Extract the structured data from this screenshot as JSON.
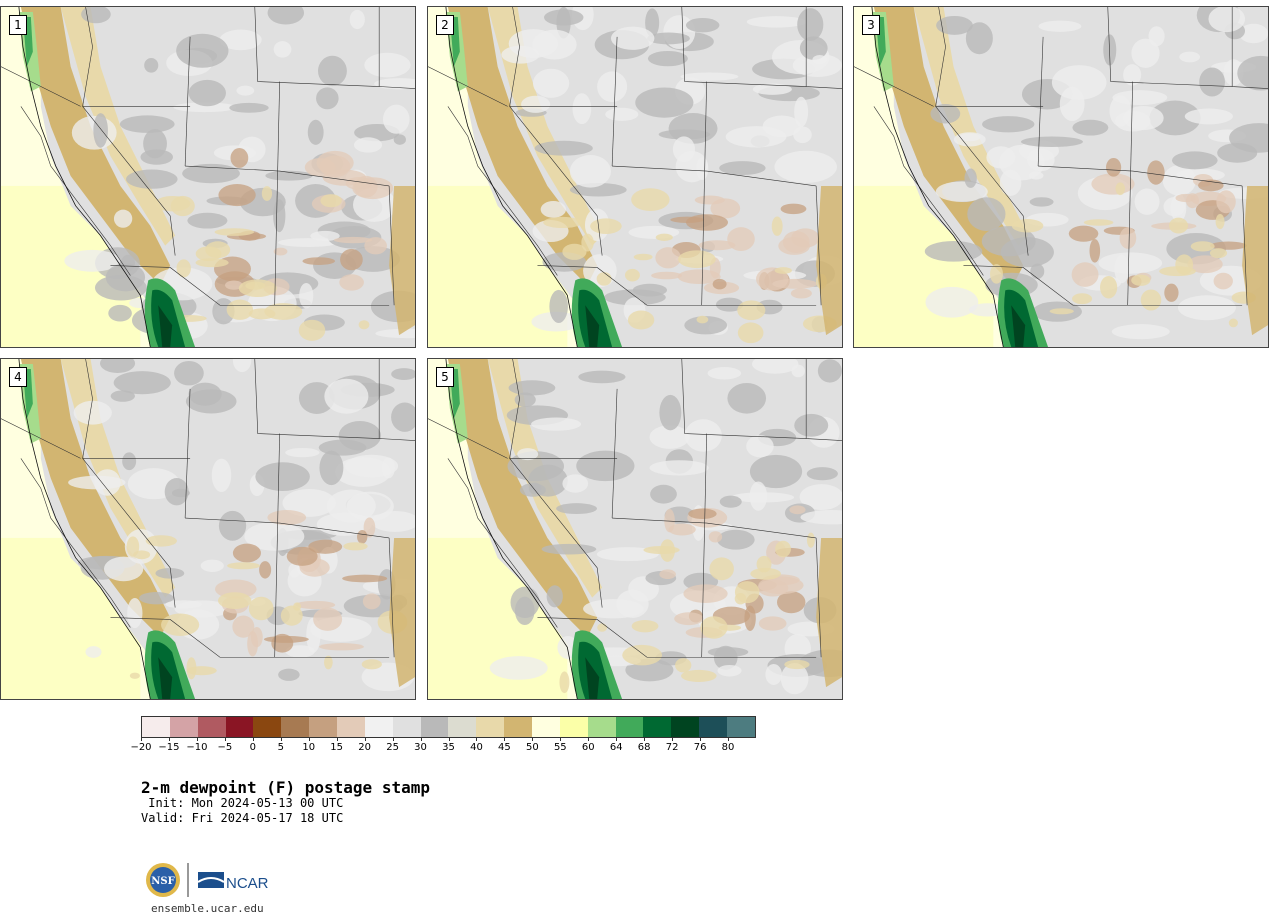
{
  "panels": [
    {
      "label": "1"
    },
    {
      "label": "2"
    },
    {
      "label": "3"
    },
    {
      "label": "4"
    },
    {
      "label": "5"
    }
  ],
  "colorbar": {
    "tick_labels": [
      "−20",
      "−15",
      "−10",
      "−5",
      "0",
      "5",
      "10",
      "15",
      "20",
      "25",
      "30",
      "35",
      "40",
      "45",
      "50",
      "55",
      "60",
      "64",
      "68",
      "72",
      "76",
      "80"
    ],
    "colors": [
      "#f6ecec",
      "#d4a3a6",
      "#b05a61",
      "#8a1524",
      "#8a4710",
      "#a77a52",
      "#c5a080",
      "#e3cbb8",
      "#f1f1f1",
      "#e0e0e0",
      "#b9b9b9",
      "#dcdcd0",
      "#e8d9aa",
      "#d2b571",
      "#ffffe0",
      "#fbffa8",
      "#a6dc8c",
      "#41aa5a",
      "#006932",
      "#004420",
      "#1d4f58",
      "#4d7c80"
    ]
  },
  "text": {
    "title": "2-m dewpoint (F) postage stamp",
    "init": " Init: Mon 2024-05-13 00 UTC",
    "valid": "Valid: Fri 2024-05-17 18 UTC",
    "site": "ensemble.ucar.edu",
    "nsf_logo_text": "NSF",
    "ncar_logo_text": "NCAR"
  }
}
